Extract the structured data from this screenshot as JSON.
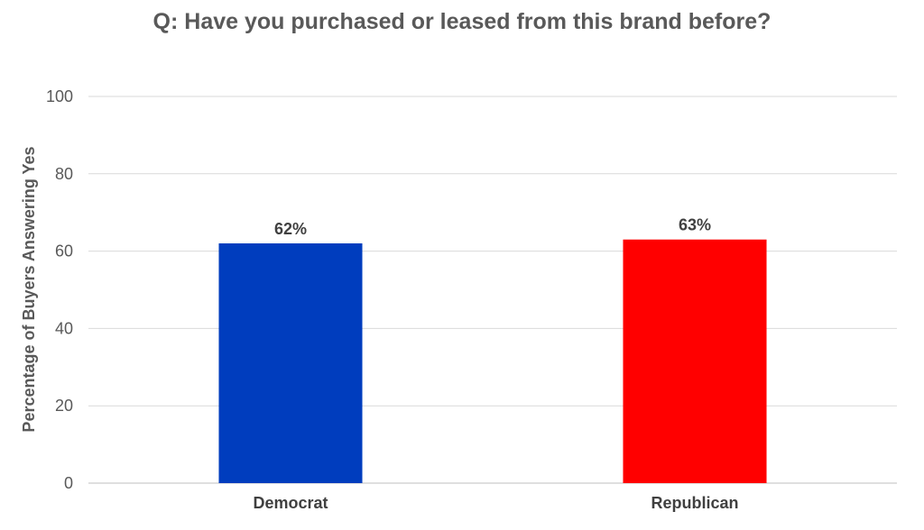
{
  "chart_data": {
    "type": "bar",
    "title": "Q: Have you purchased or leased from this brand before?",
    "xlabel": "",
    "ylabel": "Percentage of Buyers Answering Yes",
    "categories": [
      "Democrat",
      "Republican"
    ],
    "values": [
      62,
      63
    ],
    "data_labels": [
      "62%",
      "63%"
    ],
    "colors": [
      "#003DBE",
      "#FF0000"
    ],
    "ylim": [
      0,
      100
    ],
    "yticks": [
      0,
      20,
      40,
      60,
      80,
      100
    ],
    "grid": true,
    "legend": "none"
  }
}
